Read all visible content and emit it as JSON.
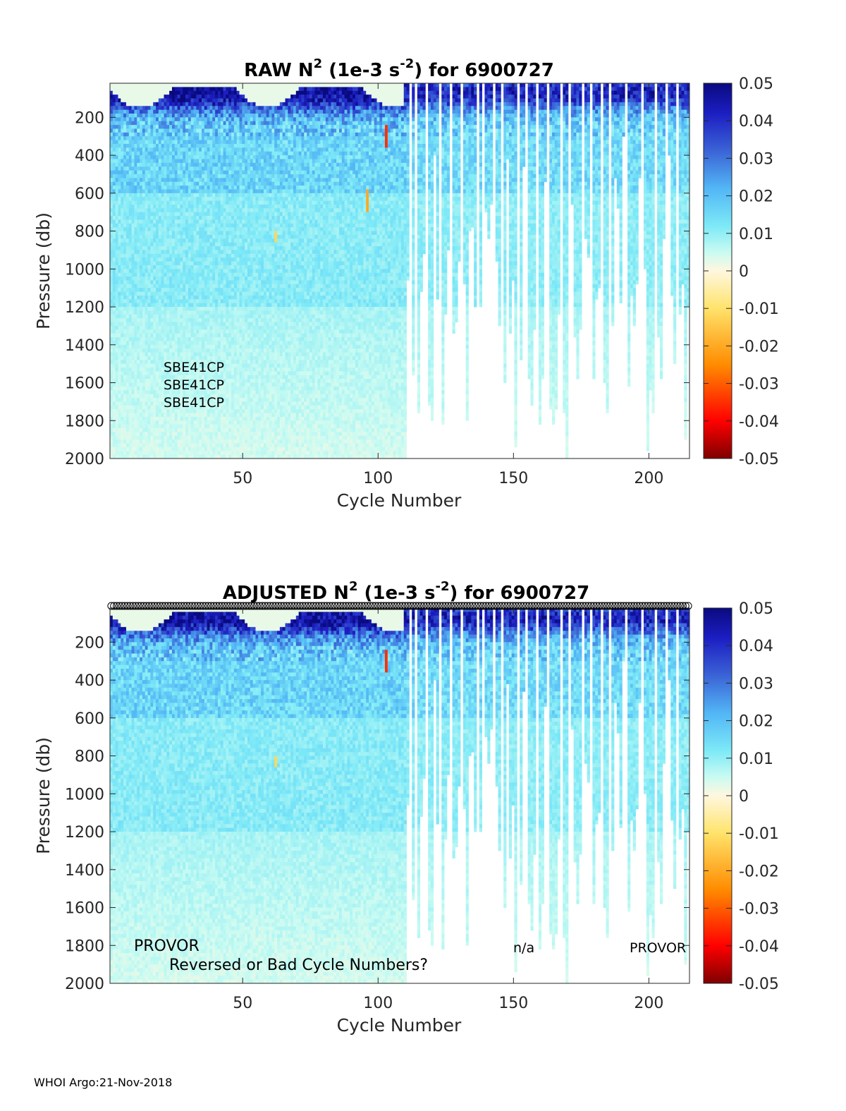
{
  "footer": "WHOI Argo:21-Nov-2018",
  "colorbar": {
    "ticks": [
      "0.05",
      "0.04",
      "0.03",
      "0.02",
      "0.01",
      "0",
      "-0.01",
      "-0.02",
      "-0.03",
      "-0.04",
      "-0.05"
    ],
    "range": [
      -0.05,
      0.05
    ],
    "colormap": [
      "#7f0000",
      "#ff0000",
      "#ff8c00",
      "#ffe36b",
      "#fff7df",
      "#c9fbf2",
      "#7de9f7",
      "#52b6f5",
      "#3b63d6",
      "#1c1ec2",
      "#0a0a80"
    ]
  },
  "chart_data": [
    {
      "type": "heatmap",
      "title_main": "RAW N",
      "title_sup": "2",
      "title_mid": " (1e-3 s",
      "title_sup2": "-2",
      "title_end": ") for 6900727",
      "xlabel": "Cycle Number",
      "ylabel": "Pressure (db)",
      "xlim": [
        1,
        215
      ],
      "ylim": [
        20,
        2000
      ],
      "y_reversed": true,
      "xticks": [
        "50",
        "100",
        "150",
        "200"
      ],
      "yticks": [
        "200",
        "400",
        "600",
        "800",
        "1000",
        "1200",
        "1400",
        "1600",
        "1800",
        "2000"
      ],
      "annotations": [
        "SBE41CP",
        "SBE41CP",
        "SBE41CP"
      ]
    },
    {
      "type": "heatmap",
      "title_main": "ADJUSTED N",
      "title_sup": "2",
      "title_mid": " (1e-3 s",
      "title_sup2": "-2",
      "title_end": ") for 6900727",
      "xlabel": "Cycle Number",
      "ylabel": "Pressure (db)",
      "xlim": [
        1,
        215
      ],
      "ylim": [
        20,
        2000
      ],
      "y_reversed": true,
      "xticks": [
        "50",
        "100",
        "150",
        "200"
      ],
      "yticks": [
        "200",
        "400",
        "600",
        "800",
        "1000",
        "1200",
        "1400",
        "1600",
        "1800",
        "2000"
      ],
      "annotations": [
        "PROVOR",
        "Reversed or Bad Cycle Numbers?",
        "n/a",
        "PROVOR"
      ]
    }
  ]
}
